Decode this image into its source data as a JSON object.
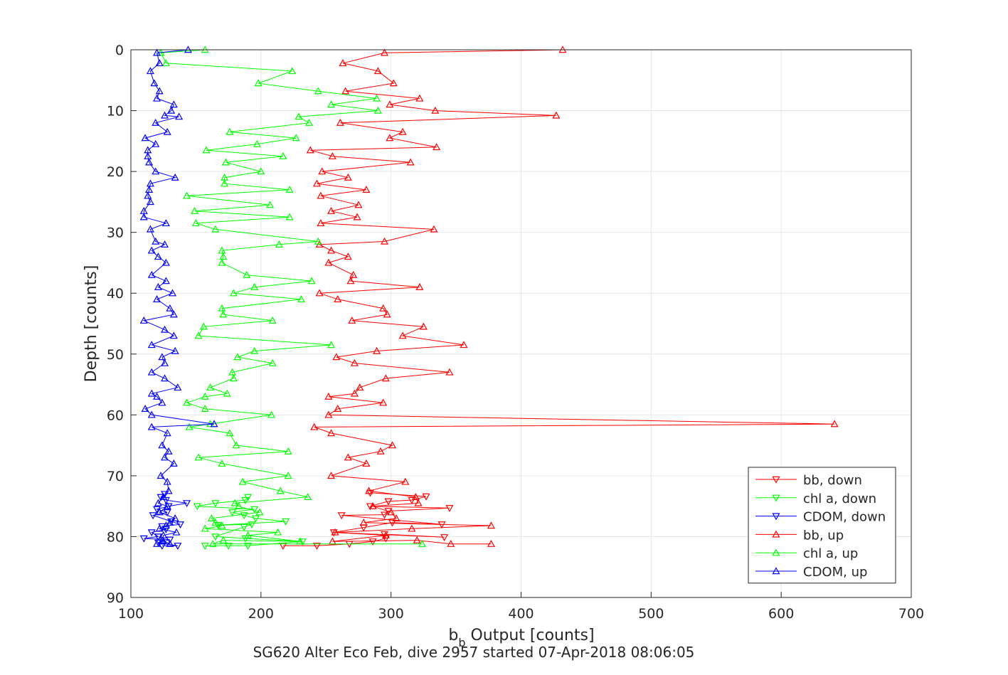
{
  "chart_data": {
    "type": "line",
    "xlabel_main": "b",
    "xlabel_sub": "b",
    "xlabel_rest": " Output [counts]",
    "ylabel": "Depth [counts]",
    "title_bottom": "SG620 Alter Eco Feb, dive 2957 started 07-Apr-2018 08:06:05",
    "xlim": [
      100,
      700
    ],
    "ylim": [
      0,
      90
    ],
    "y_reversed": true,
    "grid": true,
    "legend_position": "bottom-right",
    "xticks": [
      "100",
      "200",
      "300",
      "400",
      "500",
      "600",
      "700"
    ],
    "yticks": [
      "0",
      "10",
      "20",
      "30",
      "40",
      "50",
      "60",
      "70",
      "80",
      "90"
    ],
    "series": [
      {
        "name": "bb, down",
        "color": "#ff0000",
        "marker": "triangle-down",
        "points": [
          [
            217,
            81.5
          ],
          [
            243,
            81.5
          ],
          [
            268,
            81.2
          ],
          [
            286,
            80.8
          ],
          [
            296,
            80.3
          ],
          [
            295,
            79.6
          ],
          [
            341,
            80.1
          ],
          [
            256,
            79.3
          ],
          [
            279,
            78.5
          ],
          [
            301,
            77.7
          ],
          [
            339,
            78.0
          ],
          [
            262,
            76.5
          ],
          [
            295,
            76.4
          ],
          [
            298,
            75.8
          ],
          [
            345,
            75.3
          ],
          [
            284,
            75.0
          ],
          [
            298,
            74.2
          ],
          [
            316,
            74.0
          ],
          [
            327,
            73.4
          ],
          [
            284,
            72.8
          ]
        ]
      },
      {
        "name": "chl a, down",
        "color": "#00ff00",
        "marker": "triangle-down",
        "points": [
          [
            157,
            81.5
          ],
          [
            175,
            81.5
          ],
          [
            190,
            81.5
          ],
          [
            232,
            80.8
          ],
          [
            188,
            80.3
          ],
          [
            165,
            80.0
          ],
          [
            187,
            78.4
          ],
          [
            193,
            78.0
          ],
          [
            167,
            78.1
          ],
          [
            219,
            77.5
          ],
          [
            196,
            77.0
          ],
          [
            187,
            76.5
          ],
          [
            178,
            76.0
          ],
          [
            195,
            75.5
          ],
          [
            151,
            75.0
          ],
          [
            165,
            74.5
          ],
          [
            188,
            74.0
          ],
          [
            190,
            73.5
          ]
        ]
      },
      {
        "name": "CDOM, down",
        "color": "#0000ff",
        "marker": "triangle-down",
        "points": [
          [
            124,
            81.5
          ],
          [
            136,
            81.5
          ],
          [
            121,
            81.0
          ],
          [
            130,
            80.5
          ],
          [
            110,
            80.3
          ],
          [
            121,
            80.0
          ],
          [
            116,
            79.3
          ],
          [
            127,
            78.8
          ],
          [
            124,
            78.3
          ],
          [
            138,
            78.0
          ],
          [
            131,
            77.5
          ],
          [
            117,
            76.5
          ],
          [
            128,
            76.0
          ],
          [
            120,
            75.5
          ],
          [
            129,
            75.0
          ],
          [
            143,
            74.5
          ],
          [
            127,
            74.0
          ],
          [
            123,
            73.5
          ],
          [
            126,
            73.0
          ]
        ]
      },
      {
        "name": "bb, up",
        "color": "#ff0000",
        "marker": "triangle-up",
        "points": [
          [
            432,
            0
          ],
          [
            295,
            0.5
          ],
          [
            263,
            2.2
          ],
          [
            290,
            3.5
          ],
          [
            302,
            5.5
          ],
          [
            265,
            6.8
          ],
          [
            322,
            8
          ],
          [
            299,
            9
          ],
          [
            334,
            10
          ],
          [
            427,
            10.8
          ],
          [
            261,
            12
          ],
          [
            309,
            13.5
          ],
          [
            299,
            14.5
          ],
          [
            335,
            16
          ],
          [
            238,
            16.5
          ],
          [
            255,
            17.5
          ],
          [
            315,
            18.5
          ],
          [
            247,
            20
          ],
          [
            267,
            21
          ],
          [
            243,
            22
          ],
          [
            281,
            23
          ],
          [
            246,
            24
          ],
          [
            275,
            25.5
          ],
          [
            254,
            26.5
          ],
          [
            274,
            27.5
          ],
          [
            246,
            28.5
          ],
          [
            333,
            29.5
          ],
          [
            295,
            31.5
          ],
          [
            245,
            32
          ],
          [
            254,
            33
          ],
          [
            267,
            34
          ],
          [
            252,
            35
          ],
          [
            271,
            37
          ],
          [
            269,
            38
          ],
          [
            322,
            39
          ],
          [
            245,
            40
          ],
          [
            259,
            41
          ],
          [
            294,
            42.5
          ],
          [
            297,
            43.5
          ],
          [
            270,
            44.5
          ],
          [
            325,
            45.5
          ],
          [
            309,
            47
          ],
          [
            356,
            48.5
          ],
          [
            289,
            49.5
          ],
          [
            258,
            50.5
          ],
          [
            272,
            51.5
          ],
          [
            345,
            53
          ],
          [
            296,
            54
          ],
          [
            276,
            55.5
          ],
          [
            272,
            56.5
          ],
          [
            252,
            57
          ],
          [
            294,
            58
          ],
          [
            259,
            59
          ],
          [
            252,
            60
          ],
          [
            641,
            61.5
          ],
          [
            241,
            62
          ],
          [
            254,
            63
          ],
          [
            301,
            65
          ],
          [
            292,
            66
          ],
          [
            267,
            67
          ],
          [
            281,
            68
          ],
          [
            254,
            70
          ],
          [
            311,
            71
          ],
          [
            283,
            72.5
          ],
          [
            319,
            73.5
          ],
          [
            321,
            74.5
          ],
          [
            286,
            75
          ],
          [
            300,
            76
          ],
          [
            304,
            77
          ],
          [
            279,
            77.7
          ],
          [
            377,
            78.2
          ],
          [
            316,
            78.7
          ],
          [
            257,
            79.3
          ],
          [
            296,
            79.8
          ],
          [
            255,
            80.8
          ],
          [
            320,
            80.6
          ],
          [
            346,
            81.2
          ],
          [
            377,
            81.2
          ]
        ]
      },
      {
        "name": "chl a, up",
        "color": "#00ff00",
        "marker": "triangle-up",
        "points": [
          [
            157,
            0
          ],
          [
            123,
            0.5
          ],
          [
            127,
            2.2
          ],
          [
            224,
            3.5
          ],
          [
            198,
            5.5
          ],
          [
            244,
            6.8
          ],
          [
            289,
            8
          ],
          [
            254,
            9
          ],
          [
            290,
            10
          ],
          [
            229,
            11
          ],
          [
            237,
            12
          ],
          [
            176,
            13.5
          ],
          [
            227,
            14.5
          ],
          [
            197,
            15.5
          ],
          [
            158,
            16.5
          ],
          [
            217,
            17.5
          ],
          [
            173,
            18.5
          ],
          [
            200,
            20
          ],
          [
            172,
            21
          ],
          [
            172,
            22
          ],
          [
            222,
            23
          ],
          [
            143,
            24
          ],
          [
            207,
            25.5
          ],
          [
            149,
            26.5
          ],
          [
            222,
            27.5
          ],
          [
            150,
            28.5
          ],
          [
            165,
            29.5
          ],
          [
            244,
            31.5
          ],
          [
            214,
            32
          ],
          [
            170,
            33
          ],
          [
            171,
            34
          ],
          [
            170,
            35
          ],
          [
            189,
            37
          ],
          [
            239,
            38
          ],
          [
            195,
            39
          ],
          [
            179,
            40
          ],
          [
            231,
            41
          ],
          [
            170,
            42.5
          ],
          [
            171,
            43.5
          ],
          [
            209,
            44.5
          ],
          [
            156,
            45.5
          ],
          [
            152,
            47
          ],
          [
            254,
            48.5
          ],
          [
            195,
            49.5
          ],
          [
            182,
            50.5
          ],
          [
            209,
            51.5
          ],
          [
            178,
            53
          ],
          [
            179,
            54
          ],
          [
            161,
            55.5
          ],
          [
            174,
            56.5
          ],
          [
            157,
            57
          ],
          [
            143,
            58
          ],
          [
            157,
            59
          ],
          [
            208,
            60
          ],
          [
            161,
            61.5
          ],
          [
            145,
            62
          ],
          [
            176,
            63
          ],
          [
            181,
            65
          ],
          [
            221,
            66
          ],
          [
            152,
            67
          ],
          [
            170,
            68
          ],
          [
            221,
            70
          ],
          [
            186,
            71
          ],
          [
            215,
            72.5
          ],
          [
            236,
            73.5
          ],
          [
            180,
            74.5
          ],
          [
            183,
            75
          ],
          [
            199,
            76
          ],
          [
            162,
            77
          ],
          [
            165,
            77.7
          ],
          [
            170,
            78.2
          ],
          [
            157,
            78.7
          ],
          [
            213,
            79.3
          ],
          [
            190,
            79.8
          ],
          [
            230,
            80.8
          ],
          [
            171,
            80.6
          ],
          [
            163,
            81.2
          ],
          [
            324,
            81.2
          ]
        ]
      },
      {
        "name": "CDOM, up",
        "color": "#0000ff",
        "marker": "triangle-up",
        "points": [
          [
            144,
            0
          ],
          [
            120,
            0.5
          ],
          [
            122,
            2.2
          ],
          [
            115,
            3.5
          ],
          [
            118,
            5.5
          ],
          [
            122,
            6.8
          ],
          [
            120,
            8
          ],
          [
            133,
            9
          ],
          [
            131,
            10
          ],
          [
            126,
            10.8
          ],
          [
            137,
            11
          ],
          [
            119,
            12
          ],
          [
            128,
            13.5
          ],
          [
            111,
            14.5
          ],
          [
            119,
            15.5
          ],
          [
            113,
            16.5
          ],
          [
            113,
            17.5
          ],
          [
            114,
            18.5
          ],
          [
            119,
            20
          ],
          [
            134,
            21
          ],
          [
            115,
            22
          ],
          [
            114,
            23
          ],
          [
            113,
            24
          ],
          [
            115,
            25
          ],
          [
            110,
            26.5
          ],
          [
            110,
            27.5
          ],
          [
            127,
            28.5
          ],
          [
            115,
            29.5
          ],
          [
            119,
            31.5
          ],
          [
            126,
            32
          ],
          [
            116,
            33
          ],
          [
            121,
            34
          ],
          [
            127,
            35
          ],
          [
            116,
            37
          ],
          [
            127,
            38
          ],
          [
            121,
            39
          ],
          [
            132,
            40
          ],
          [
            120,
            41
          ],
          [
            130,
            42.5
          ],
          [
            133,
            43.5
          ],
          [
            110,
            44.5
          ],
          [
            126,
            46
          ],
          [
            133,
            47
          ],
          [
            116,
            48.5
          ],
          [
            134,
            49.5
          ],
          [
            124,
            50.5
          ],
          [
            126,
            51.5
          ],
          [
            116,
            53
          ],
          [
            126,
            54
          ],
          [
            136,
            55.5
          ],
          [
            116,
            56.5
          ],
          [
            120,
            57
          ],
          [
            124,
            58
          ],
          [
            111,
            59
          ],
          [
            116,
            60
          ],
          [
            164,
            61.5
          ],
          [
            116,
            62
          ],
          [
            128,
            63
          ],
          [
            124,
            65
          ],
          [
            129,
            66
          ],
          [
            126,
            67
          ],
          [
            133,
            68
          ],
          [
            123,
            70
          ],
          [
            128,
            71
          ],
          [
            129,
            72.5
          ],
          [
            125,
            73.5
          ],
          [
            121,
            74.5
          ],
          [
            128,
            75
          ],
          [
            122,
            76
          ],
          [
            134,
            77
          ],
          [
            130,
            77.7
          ],
          [
            127,
            78.2
          ],
          [
            122,
            78.7
          ],
          [
            135,
            79.3
          ],
          [
            125,
            79.8
          ],
          [
            125,
            80.8
          ],
          [
            124,
            80.6
          ],
          [
            130,
            81.2
          ],
          [
            120,
            81.2
          ]
        ]
      }
    ]
  }
}
